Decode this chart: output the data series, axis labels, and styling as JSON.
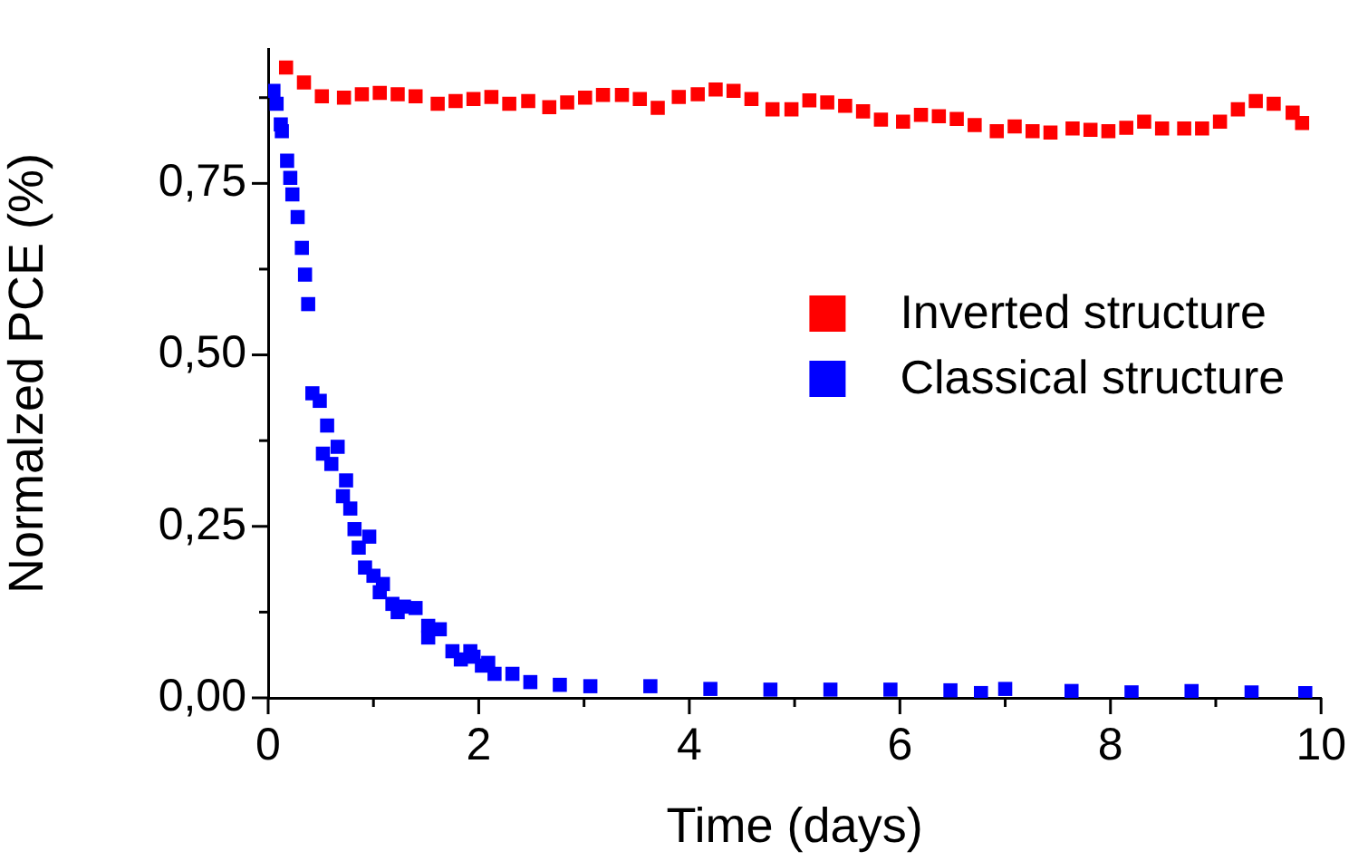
{
  "chart_data": {
    "type": "scatter",
    "xlabel": "Time (days)",
    "ylabel": "Normalzed PCE (%)",
    "xlim": [
      0,
      10
    ],
    "ylim": [
      0,
      0.946
    ],
    "xticks": [
      0,
      {
        "value": 1,
        "label": null
      },
      2,
      {
        "value": 3,
        "label": null
      },
      4,
      {
        "value": 5,
        "label": null
      },
      6,
      {
        "value": 7,
        "label": null
      },
      8,
      {
        "value": 9,
        "label": null
      },
      10
    ],
    "yticks": [
      {
        "value": 0,
        "label": "0,00"
      },
      {
        "value": 0.125,
        "label": null
      },
      {
        "value": 0.25,
        "label": "0,25"
      },
      {
        "value": 0.375,
        "label": null
      },
      {
        "value": 0.5,
        "label": "0,50"
      },
      {
        "value": 0.625,
        "label": null
      },
      {
        "value": 0.75,
        "label": "0,75"
      },
      {
        "value": 0.875,
        "label": null
      }
    ],
    "grid": false,
    "legend": "top right",
    "marker": "square",
    "series": [
      {
        "name": "Inverted structure",
        "color": "#ff0000",
        "x": [
          0.17,
          0.34,
          0.51,
          0.72,
          0.89,
          1.06,
          1.23,
          1.4,
          1.61,
          1.78,
          1.95,
          2.12,
          2.29,
          2.47,
          2.67,
          2.84,
          3.01,
          3.18,
          3.36,
          3.53,
          3.7,
          3.9,
          4.08,
          4.25,
          4.42,
          4.59,
          4.79,
          4.97,
          5.14,
          5.31,
          5.48,
          5.65,
          5.82,
          6.03,
          6.2,
          6.37,
          6.54,
          6.71,
          6.92,
          7.09,
          7.26,
          7.43,
          7.64,
          7.81,
          7.98,
          8.15,
          8.32,
          8.49,
          8.7,
          8.87,
          9.04,
          9.21,
          9.38,
          9.55,
          9.73,
          9.82
        ],
        "values": [
          0.919,
          0.897,
          0.877,
          0.875,
          0.88,
          0.882,
          0.88,
          0.877,
          0.866,
          0.87,
          0.873,
          0.876,
          0.866,
          0.87,
          0.861,
          0.868,
          0.875,
          0.879,
          0.879,
          0.873,
          0.86,
          0.876,
          0.88,
          0.887,
          0.885,
          0.873,
          0.858,
          0.858,
          0.871,
          0.868,
          0.863,
          0.855,
          0.843,
          0.84,
          0.85,
          0.848,
          0.844,
          0.835,
          0.826,
          0.833,
          0.826,
          0.824,
          0.83,
          0.828,
          0.826,
          0.831,
          0.84,
          0.83,
          0.83,
          0.83,
          0.84,
          0.858,
          0.87,
          0.866,
          0.853,
          0.838
        ]
      },
      {
        "name": "Classical structure",
        "color": "#0000ff",
        "x": [
          0.05,
          0.08,
          0.12,
          0.13,
          0.18,
          0.21,
          0.23,
          0.28,
          0.32,
          0.35,
          0.38,
          0.42,
          0.49,
          0.52,
          0.56,
          0.6,
          0.66,
          0.71,
          0.74,
          0.78,
          0.82,
          0.86,
          0.92,
          0.96,
          1.0,
          1.06,
          1.09,
          1.18,
          1.23,
          1.29,
          1.4,
          1.52,
          1.52,
          1.63,
          1.75,
          1.83,
          1.92,
          1.95,
          2.03,
          2.09,
          2.15,
          2.32,
          2.49,
          2.77,
          3.06,
          3.63,
          4.2,
          4.77,
          5.34,
          5.91,
          6.48,
          6.77,
          7.0,
          7.63,
          8.2,
          8.77,
          9.34,
          9.85
        ],
        "values": [
          0.885,
          0.866,
          0.836,
          0.826,
          0.783,
          0.758,
          0.734,
          0.701,
          0.656,
          0.617,
          0.574,
          0.444,
          0.433,
          0.356,
          0.397,
          0.341,
          0.366,
          0.294,
          0.317,
          0.276,
          0.246,
          0.219,
          0.19,
          0.235,
          0.178,
          0.154,
          0.166,
          0.137,
          0.125,
          0.133,
          0.131,
          0.105,
          0.088,
          0.1,
          0.068,
          0.056,
          0.068,
          0.06,
          0.047,
          0.051,
          0.035,
          0.035,
          0.023,
          0.019,
          0.017,
          0.017,
          0.013,
          0.012,
          0.012,
          0.012,
          0.011,
          0.007,
          0.013,
          0.01,
          0.008,
          0.01,
          0.008,
          0.007
        ]
      }
    ]
  }
}
